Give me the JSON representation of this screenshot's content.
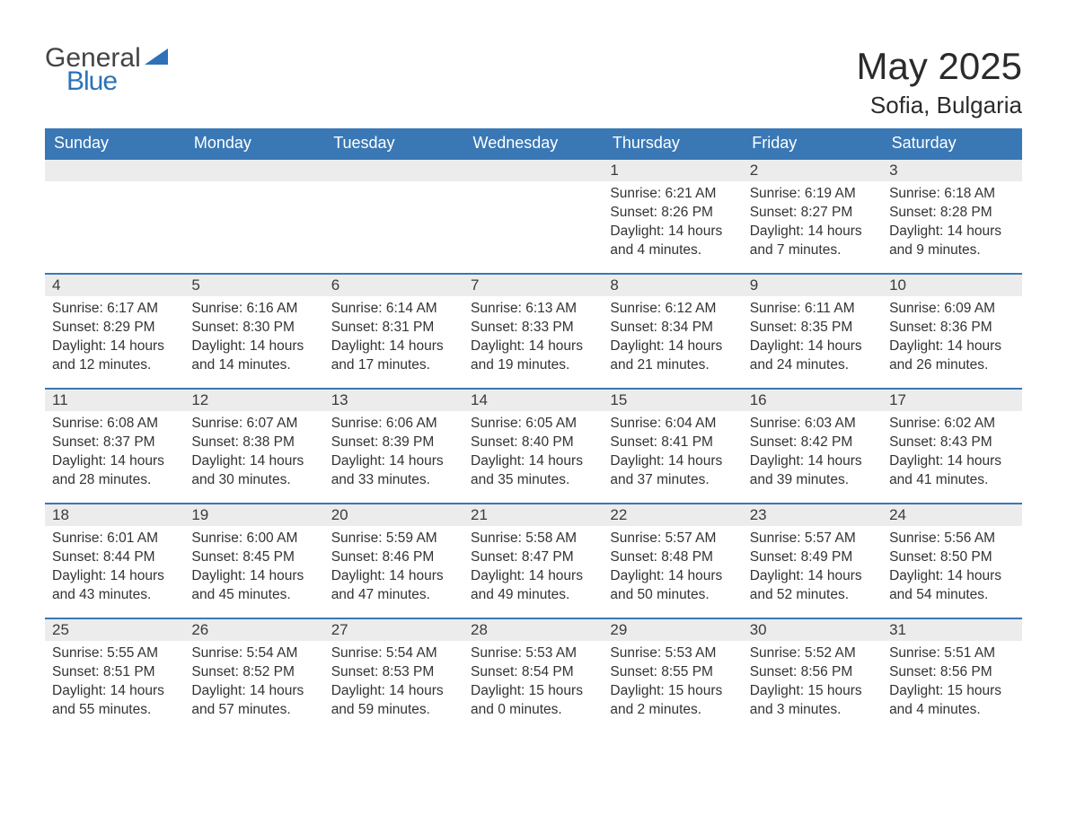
{
  "logo": {
    "line1": "General",
    "line2": "Blue"
  },
  "title": "May 2025",
  "location": "Sofia, Bulgaria",
  "headers": [
    "Sunday",
    "Monday",
    "Tuesday",
    "Wednesday",
    "Thursday",
    "Friday",
    "Saturday"
  ],
  "colors": {
    "header_bg": "#3a78b5",
    "header_fg": "#ffffff",
    "daynum_bg": "#ececec",
    "daynum_border": "#3a78b5",
    "text": "#333333",
    "logo_blue": "#2d72b8"
  },
  "weeks": [
    [
      {
        "n": "",
        "lines": []
      },
      {
        "n": "",
        "lines": []
      },
      {
        "n": "",
        "lines": []
      },
      {
        "n": "",
        "lines": []
      },
      {
        "n": "1",
        "lines": [
          "Sunrise: 6:21 AM",
          "Sunset: 8:26 PM",
          "Daylight: 14 hours and 4 minutes."
        ]
      },
      {
        "n": "2",
        "lines": [
          "Sunrise: 6:19 AM",
          "Sunset: 8:27 PM",
          "Daylight: 14 hours and 7 minutes."
        ]
      },
      {
        "n": "3",
        "lines": [
          "Sunrise: 6:18 AM",
          "Sunset: 8:28 PM",
          "Daylight: 14 hours and 9 minutes."
        ]
      }
    ],
    [
      {
        "n": "4",
        "lines": [
          "Sunrise: 6:17 AM",
          "Sunset: 8:29 PM",
          "Daylight: 14 hours and 12 minutes."
        ]
      },
      {
        "n": "5",
        "lines": [
          "Sunrise: 6:16 AM",
          "Sunset: 8:30 PM",
          "Daylight: 14 hours and 14 minutes."
        ]
      },
      {
        "n": "6",
        "lines": [
          "Sunrise: 6:14 AM",
          "Sunset: 8:31 PM",
          "Daylight: 14 hours and 17 minutes."
        ]
      },
      {
        "n": "7",
        "lines": [
          "Sunrise: 6:13 AM",
          "Sunset: 8:33 PM",
          "Daylight: 14 hours and 19 minutes."
        ]
      },
      {
        "n": "8",
        "lines": [
          "Sunrise: 6:12 AM",
          "Sunset: 8:34 PM",
          "Daylight: 14 hours and 21 minutes."
        ]
      },
      {
        "n": "9",
        "lines": [
          "Sunrise: 6:11 AM",
          "Sunset: 8:35 PM",
          "Daylight: 14 hours and 24 minutes."
        ]
      },
      {
        "n": "10",
        "lines": [
          "Sunrise: 6:09 AM",
          "Sunset: 8:36 PM",
          "Daylight: 14 hours and 26 minutes."
        ]
      }
    ],
    [
      {
        "n": "11",
        "lines": [
          "Sunrise: 6:08 AM",
          "Sunset: 8:37 PM",
          "Daylight: 14 hours and 28 minutes."
        ]
      },
      {
        "n": "12",
        "lines": [
          "Sunrise: 6:07 AM",
          "Sunset: 8:38 PM",
          "Daylight: 14 hours and 30 minutes."
        ]
      },
      {
        "n": "13",
        "lines": [
          "Sunrise: 6:06 AM",
          "Sunset: 8:39 PM",
          "Daylight: 14 hours and 33 minutes."
        ]
      },
      {
        "n": "14",
        "lines": [
          "Sunrise: 6:05 AM",
          "Sunset: 8:40 PM",
          "Daylight: 14 hours and 35 minutes."
        ]
      },
      {
        "n": "15",
        "lines": [
          "Sunrise: 6:04 AM",
          "Sunset: 8:41 PM",
          "Daylight: 14 hours and 37 minutes."
        ]
      },
      {
        "n": "16",
        "lines": [
          "Sunrise: 6:03 AM",
          "Sunset: 8:42 PM",
          "Daylight: 14 hours and 39 minutes."
        ]
      },
      {
        "n": "17",
        "lines": [
          "Sunrise: 6:02 AM",
          "Sunset: 8:43 PM",
          "Daylight: 14 hours and 41 minutes."
        ]
      }
    ],
    [
      {
        "n": "18",
        "lines": [
          "Sunrise: 6:01 AM",
          "Sunset: 8:44 PM",
          "Daylight: 14 hours and 43 minutes."
        ]
      },
      {
        "n": "19",
        "lines": [
          "Sunrise: 6:00 AM",
          "Sunset: 8:45 PM",
          "Daylight: 14 hours and 45 minutes."
        ]
      },
      {
        "n": "20",
        "lines": [
          "Sunrise: 5:59 AM",
          "Sunset: 8:46 PM",
          "Daylight: 14 hours and 47 minutes."
        ]
      },
      {
        "n": "21",
        "lines": [
          "Sunrise: 5:58 AM",
          "Sunset: 8:47 PM",
          "Daylight: 14 hours and 49 minutes."
        ]
      },
      {
        "n": "22",
        "lines": [
          "Sunrise: 5:57 AM",
          "Sunset: 8:48 PM",
          "Daylight: 14 hours and 50 minutes."
        ]
      },
      {
        "n": "23",
        "lines": [
          "Sunrise: 5:57 AM",
          "Sunset: 8:49 PM",
          "Daylight: 14 hours and 52 minutes."
        ]
      },
      {
        "n": "24",
        "lines": [
          "Sunrise: 5:56 AM",
          "Sunset: 8:50 PM",
          "Daylight: 14 hours and 54 minutes."
        ]
      }
    ],
    [
      {
        "n": "25",
        "lines": [
          "Sunrise: 5:55 AM",
          "Sunset: 8:51 PM",
          "Daylight: 14 hours and 55 minutes."
        ]
      },
      {
        "n": "26",
        "lines": [
          "Sunrise: 5:54 AM",
          "Sunset: 8:52 PM",
          "Daylight: 14 hours and 57 minutes."
        ]
      },
      {
        "n": "27",
        "lines": [
          "Sunrise: 5:54 AM",
          "Sunset: 8:53 PM",
          "Daylight: 14 hours and 59 minutes."
        ]
      },
      {
        "n": "28",
        "lines": [
          "Sunrise: 5:53 AM",
          "Sunset: 8:54 PM",
          "Daylight: 15 hours and 0 minutes."
        ]
      },
      {
        "n": "29",
        "lines": [
          "Sunrise: 5:53 AM",
          "Sunset: 8:55 PM",
          "Daylight: 15 hours and 2 minutes."
        ]
      },
      {
        "n": "30",
        "lines": [
          "Sunrise: 5:52 AM",
          "Sunset: 8:56 PM",
          "Daylight: 15 hours and 3 minutes."
        ]
      },
      {
        "n": "31",
        "lines": [
          "Sunrise: 5:51 AM",
          "Sunset: 8:56 PM",
          "Daylight: 15 hours and 4 minutes."
        ]
      }
    ]
  ]
}
